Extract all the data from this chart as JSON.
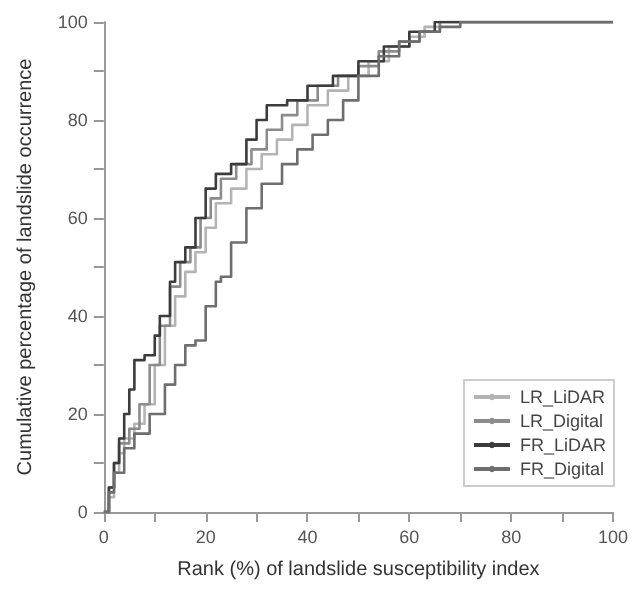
{
  "chart_data": {
    "type": "step",
    "xlabel": "Rank (%) of landslide susceptibility index",
    "ylabel": "Cumulative percentage of landslide occurrence",
    "xlim": [
      0,
      100
    ],
    "xticks": [
      0,
      {
        "value": 10,
        "label": null
      },
      20,
      {
        "value": 30,
        "label": null
      },
      40,
      {
        "value": 50,
        "label": null
      },
      60,
      {
        "value": 70,
        "label": null
      },
      80,
      {
        "value": 90,
        "label": null
      },
      100
    ],
    "ylim": [
      0,
      100
    ],
    "yticks": [
      0,
      {
        "value": 10,
        "label": null
      },
      20,
      {
        "value": 30,
        "label": null
      },
      40,
      {
        "value": 50,
        "label": null
      },
      60,
      {
        "value": 70,
        "label": null
      },
      80,
      {
        "value": 90,
        "label": null
      },
      100
    ],
    "grid": false,
    "legend": "bottom right",
    "marker": "none",
    "line_style": "solid",
    "series": [
      {
        "name": "LR_LiDAR",
        "color": "#b4b4b4",
        "x": [
          0,
          1,
          2,
          3,
          4,
          6,
          8,
          10,
          12,
          14,
          16,
          18,
          20,
          22,
          25,
          28,
          31,
          34,
          37,
          40,
          44,
          48,
          52,
          56,
          60,
          63,
          66,
          100
        ],
        "values": [
          0,
          3,
          8,
          12,
          15,
          18,
          22,
          30,
          38,
          44,
          49,
          53,
          58,
          63,
          66,
          70,
          73,
          76,
          79,
          83,
          86,
          89,
          92,
          95,
          97,
          99,
          100,
          100
        ]
      },
      {
        "name": "LR_Digital",
        "color": "#8c8c8c",
        "x": [
          0,
          1,
          2,
          3,
          5,
          7,
          9,
          11,
          13,
          15,
          17,
          19,
          21,
          23,
          26,
          29,
          32,
          35,
          38,
          42,
          46,
          50,
          54,
          58,
          62,
          66,
          100
        ],
        "values": [
          0,
          5,
          10,
          14,
          17,
          22,
          30,
          38,
          46,
          51,
          54,
          60,
          64,
          68,
          71,
          74,
          78,
          81,
          84,
          87,
          89,
          91,
          94,
          96,
          98,
          100,
          100
        ]
      },
      {
        "name": "FR_LiDAR",
        "color": "#3c3c3c",
        "x": [
          0,
          1,
          2,
          3,
          4,
          5,
          6,
          8,
          10,
          11,
          13,
          14,
          16,
          18,
          20,
          22,
          25,
          28,
          30,
          32,
          36,
          40,
          45,
          50,
          55,
          60,
          65,
          100
        ],
        "values": [
          0,
          5,
          10,
          15,
          20,
          25,
          31,
          32,
          36,
          40,
          47,
          51,
          54,
          60,
          66,
          69,
          71,
          76,
          80,
          83,
          84,
          87,
          89,
          92,
          95,
          98,
          100,
          100
        ]
      },
      {
        "name": "FR_Digital",
        "color": "#6e6e6e",
        "x": [
          0,
          1,
          2,
          4,
          6,
          9,
          12,
          14,
          16,
          18,
          20,
          22,
          23,
          25,
          28,
          31,
          35,
          38,
          41,
          44,
          47,
          50,
          54,
          58,
          62,
          66,
          70,
          100
        ],
        "values": [
          0,
          4,
          8,
          13,
          16,
          20,
          26,
          30,
          34,
          35,
          42,
          47,
          48,
          55,
          62,
          67,
          71,
          74,
          77,
          80,
          84,
          89,
          93,
          96,
          98,
          99,
          100,
          100
        ]
      }
    ]
  }
}
